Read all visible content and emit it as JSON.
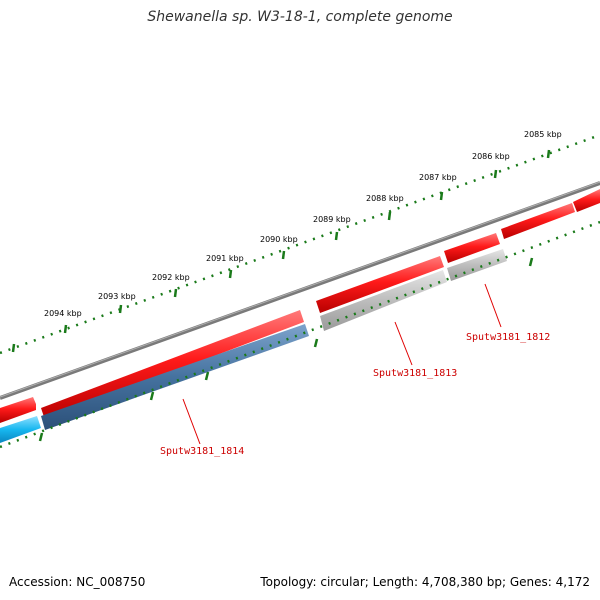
{
  "title": "Shewanella sp. W3-18-1, complete genome",
  "footer": {
    "accession": "Accession: NC_008750",
    "summary": "Topology: circular; Length: 4,708,380 bp; Genes: 4,172"
  },
  "kbp_labels": [
    "2094 kbp",
    "2093 kbp",
    "2092 kbp",
    "2091 kbp",
    "2090 kbp",
    "2089 kbp",
    "2088 kbp",
    "2087 kbp",
    "2086 kbp",
    "2085 kbp"
  ],
  "genes": [
    {
      "label": "Sputw3181_1814"
    },
    {
      "label": "Sputw3181_1813"
    },
    {
      "label": "Sputw3181_1812"
    }
  ],
  "colors": {
    "backbone": "#808080",
    "forward_cds": "#e60000",
    "reverse_cds_blue": "#3f6fa3",
    "reverse_cds_cyan": "#12b6ee",
    "reverse_cds_gray": "#b8b8b8",
    "tick": "#1a7a1a",
    "label": "#cc0000"
  }
}
